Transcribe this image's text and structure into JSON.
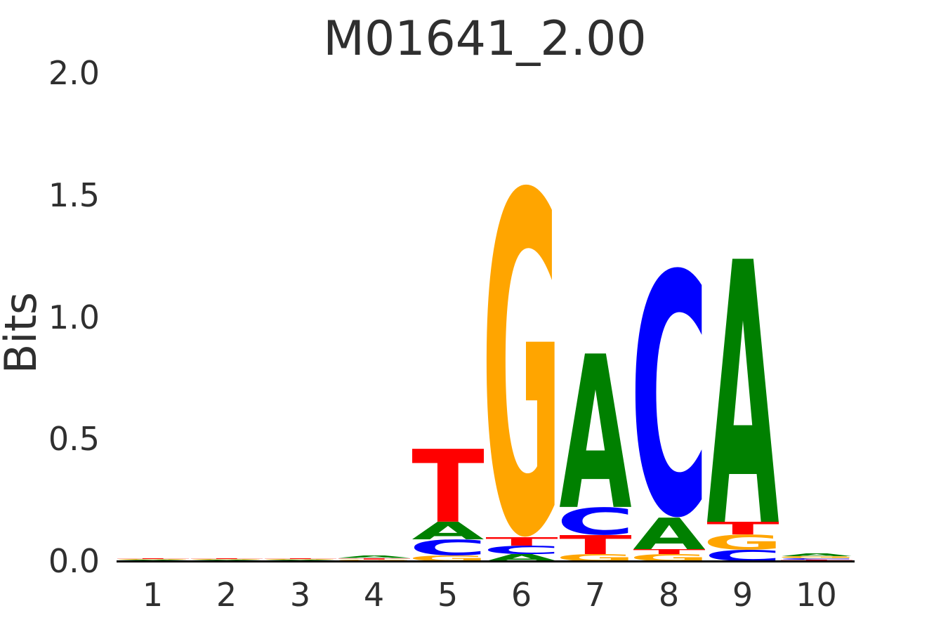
{
  "figure": {
    "title": "M01641_2.00",
    "background_color": "#ffffff",
    "text_color": "#2f2f2f"
  },
  "chart_data": {
    "type": "sequence_logo",
    "title": "M01641_2.00",
    "xlabel": "",
    "ylabel": "Bits",
    "units": "bits",
    "ylim": [
      0.0,
      2.0
    ],
    "yticks": [
      "0.0",
      "0.5",
      "1.0",
      "1.5",
      "2.0"
    ],
    "xticks": [
      "1",
      "2",
      "3",
      "4",
      "5",
      "6",
      "7",
      "8",
      "9",
      "10"
    ],
    "grid": false,
    "legend": false,
    "letter_colors": {
      "A": "#008000",
      "C": "#0000ff",
      "G": "#ffa500",
      "T": "#ff0000"
    },
    "consensus_tall_letters": "TGACA (positions 5-9)",
    "positions": [
      {
        "position": 1,
        "stack_bottom_to_top": [
          {
            "base": "C",
            "bits": 0.002
          },
          {
            "base": "A",
            "bits": 0.003
          },
          {
            "base": "G",
            "bits": 0.003
          },
          {
            "base": "T",
            "bits": 0.004
          }
        ]
      },
      {
        "position": 2,
        "stack_bottom_to_top": [
          {
            "base": "C",
            "bits": 0.002
          },
          {
            "base": "A",
            "bits": 0.003
          },
          {
            "base": "G",
            "bits": 0.003
          },
          {
            "base": "T",
            "bits": 0.004
          }
        ]
      },
      {
        "position": 3,
        "stack_bottom_to_top": [
          {
            "base": "C",
            "bits": 0.002
          },
          {
            "base": "A",
            "bits": 0.003
          },
          {
            "base": "G",
            "bits": 0.003
          },
          {
            "base": "T",
            "bits": 0.004
          }
        ]
      },
      {
        "position": 4,
        "stack_bottom_to_top": [
          {
            "base": "C",
            "bits": 0.003
          },
          {
            "base": "G",
            "bits": 0.004
          },
          {
            "base": "T",
            "bits": 0.005
          },
          {
            "base": "A",
            "bits": 0.01
          }
        ]
      },
      {
        "position": 5,
        "stack_bottom_to_top": [
          {
            "base": "G",
            "bits": 0.023
          },
          {
            "base": "C",
            "bits": 0.066
          },
          {
            "base": "A",
            "bits": 0.072
          },
          {
            "base": "T",
            "bits": 0.299
          }
        ]
      },
      {
        "position": 6,
        "stack_bottom_to_top": [
          {
            "base": "A",
            "bits": 0.029
          },
          {
            "base": "C",
            "bits": 0.035
          },
          {
            "base": "T",
            "bits": 0.035
          },
          {
            "base": "G",
            "bits": 1.45
          }
        ]
      },
      {
        "position": 7,
        "stack_bottom_to_top": [
          {
            "base": "G",
            "bits": 0.029
          },
          {
            "base": "T",
            "bits": 0.078
          },
          {
            "base": "C",
            "bits": 0.115
          },
          {
            "base": "A",
            "bits": 0.63
          }
        ]
      },
      {
        "position": 8,
        "stack_bottom_to_top": [
          {
            "base": "G",
            "bits": 0.029
          },
          {
            "base": "T",
            "bits": 0.02
          },
          {
            "base": "A",
            "bits": 0.13
          },
          {
            "base": "C",
            "bits": 1.03
          }
        ]
      },
      {
        "position": 9,
        "stack_bottom_to_top": [
          {
            "base": "C",
            "bits": 0.046
          },
          {
            "base": "G",
            "bits": 0.063
          },
          {
            "base": "T",
            "bits": 0.052
          },
          {
            "base": "A",
            "bits": 1.08
          }
        ]
      },
      {
        "position": 10,
        "stack_bottom_to_top": [
          {
            "base": "T",
            "bits": 0.006
          },
          {
            "base": "C",
            "bits": 0.006
          },
          {
            "base": "G",
            "bits": 0.008
          },
          {
            "base": "A",
            "bits": 0.012
          }
        ]
      }
    ]
  }
}
